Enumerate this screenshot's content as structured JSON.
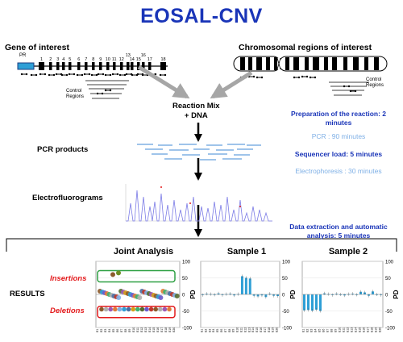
{
  "title": "EOSAL-CNV",
  "gene": {
    "label": "Gene of interest",
    "promoter_label": "PR",
    "exon_labels": [
      "1",
      "2",
      "3",
      "4",
      "5",
      "6",
      "7",
      "8",
      "9",
      "10",
      "11",
      "12",
      "13",
      "14",
      "15",
      "16",
      "17",
      "18"
    ],
    "control_label": "Control\nRegions"
  },
  "chromosome": {
    "label": "Chromosomal regions of interest",
    "control_label": "Control\nRegions"
  },
  "steps": {
    "reaction_mix": "Reaction Mix\n+ DNA",
    "pcr_products": "PCR products",
    "electrofluorograms": "Electrofluorograms",
    "results": "RESULTS"
  },
  "timings": {
    "preparation": "Preparation of the reaction: 2\nminutes",
    "pcr": "PCR : 90 minutes",
    "sequencer": "Sequencer load: 5 minutes",
    "electrophoresis": "Electrophoresis : 30 minutes",
    "data_extraction": "Data extraction and automatic\nanalysis: 5 minutes"
  },
  "panels": {
    "joint": {
      "title": "Joint Analysis",
      "insertions_label": "Insertions",
      "deletions_label": "Deletions",
      "ylabel": "PD",
      "yticks": [
        "100",
        "50",
        "0",
        "-50",
        "-100"
      ]
    },
    "sample1": {
      "title": "Sample 1",
      "ylabel": "PD",
      "yticks": [
        "100",
        "50",
        "0",
        "-50",
        "-100"
      ]
    },
    "sample2": {
      "title": "Sample 2",
      "ylabel": "PD",
      "yticks": [
        "100",
        "50",
        "0",
        "-50",
        "-100"
      ]
    }
  },
  "colors": {
    "title_blue": "#1a35b8",
    "light_blue": "#7fb0e6",
    "bar_blue": "#2e9fd6",
    "insertion_green": "#2ea043",
    "deletion_red": "#e31a1c",
    "arrow_gray": "#a6a6a6"
  },
  "chart_data": [
    {
      "type": "scatter",
      "title": "Joint Analysis",
      "ylabel": "PD",
      "ylim": [
        -100,
        100
      ],
      "groups": [
        {
          "name": "Insertions",
          "values": [
            60,
            65
          ]
        },
        {
          "name": "Deletions",
          "values": [
            -45,
            -45,
            -45,
            -45,
            -45,
            -45,
            -45,
            -45,
            -45,
            -45,
            -45,
            -45,
            -45,
            -45,
            -45,
            -45
          ]
        }
      ]
    },
    {
      "type": "bar",
      "title": "Sample 1",
      "ylabel": "PD",
      "ylim": [
        -100,
        100
      ],
      "values": [
        -2,
        2,
        1,
        -1,
        3,
        -2,
        1,
        2,
        -3,
        1,
        55,
        50,
        48,
        -4,
        -6,
        -3,
        -8,
        2,
        -4,
        -5
      ]
    },
    {
      "type": "bar",
      "title": "Sample 2",
      "ylabel": "PD",
      "ylim": [
        -100,
        100
      ],
      "values": [
        -48,
        -47,
        -49,
        -46,
        -50,
        3,
        1,
        -2,
        2,
        0,
        -3,
        1,
        2,
        -1,
        8,
        6,
        -4,
        9,
        0,
        -2
      ]
    }
  ]
}
